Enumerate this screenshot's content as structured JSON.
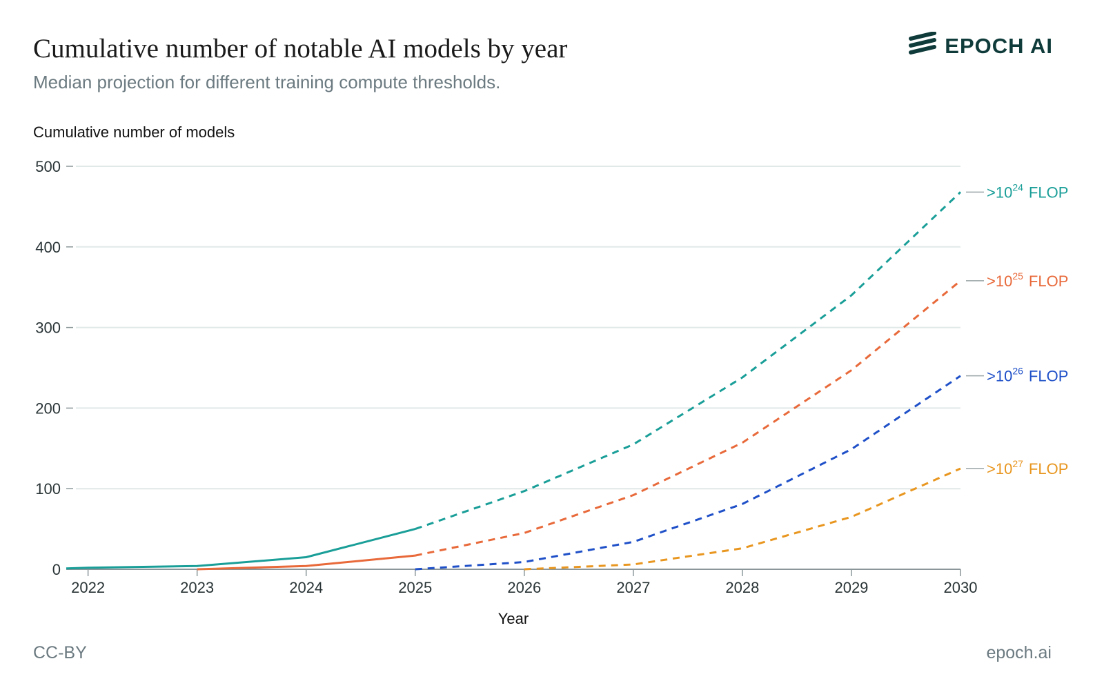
{
  "header": {
    "title": "Cumulative number of notable AI models by year",
    "subtitle": "Median projection for different training compute thresholds.",
    "brand": "EPOCH AI",
    "brand_icon": "epoch-logo-icon"
  },
  "footer": {
    "license": "CC-BY",
    "site": "epoch.ai"
  },
  "colors": {
    "teal": "#1a9e98",
    "orange": "#e8693a",
    "blue": "#1f50c8",
    "gold": "#e8961f",
    "grid": "#e1e8e8",
    "axis": "#8a9699"
  },
  "chart_data": {
    "type": "line",
    "ylabel": "Cumulative number of models",
    "xlabel": "Year",
    "ylim": [
      0,
      500
    ],
    "yticks": [
      0,
      100,
      200,
      300,
      400,
      500
    ],
    "xlim": [
      2021.8,
      2030
    ],
    "xticks": [
      2022,
      2023,
      2024,
      2025,
      2026,
      2027,
      2028,
      2029,
      2030
    ],
    "grid": true,
    "legend": "end-of-line labels",
    "series": [
      {
        "name": ">10^24 FLOP",
        "label_base": ">10",
        "label_exp": "24",
        "label_unit": "FLOP",
        "color": "#1a9e98",
        "observed": {
          "x": [
            2021.8,
            2022,
            2023,
            2024,
            2025
          ],
          "y": [
            1,
            2,
            4,
            15,
            50
          ]
        },
        "projected": {
          "x": [
            2025,
            2026,
            2027,
            2028,
            2029,
            2030
          ],
          "y": [
            50,
            97,
            155,
            238,
            340,
            468
          ]
        }
      },
      {
        "name": ">10^25 FLOP",
        "label_base": ">10",
        "label_exp": "25",
        "label_unit": "FLOP",
        "color": "#e8693a",
        "observed": {
          "x": [
            2023,
            2024,
            2025
          ],
          "y": [
            0,
            4,
            17
          ]
        },
        "projected": {
          "x": [
            2025,
            2026,
            2027,
            2028,
            2029,
            2030
          ],
          "y": [
            17,
            45,
            92,
            157,
            247,
            358
          ]
        }
      },
      {
        "name": ">10^26 FLOP",
        "label_base": ">10",
        "label_exp": "26",
        "label_unit": "FLOP",
        "color": "#1f50c8",
        "observed": {
          "x": [],
          "y": []
        },
        "projected": {
          "x": [
            2025,
            2026,
            2027,
            2028,
            2029,
            2030
          ],
          "y": [
            0,
            9,
            34,
            81,
            149,
            240
          ]
        }
      },
      {
        "name": ">10^27 FLOP",
        "label_base": ">10",
        "label_exp": "27",
        "label_unit": "FLOP",
        "color": "#e8961f",
        "observed": {
          "x": [],
          "y": []
        },
        "projected": {
          "x": [
            2026,
            2027,
            2028,
            2029,
            2030
          ],
          "y": [
            0,
            6,
            26,
            65,
            125
          ]
        }
      }
    ]
  }
}
